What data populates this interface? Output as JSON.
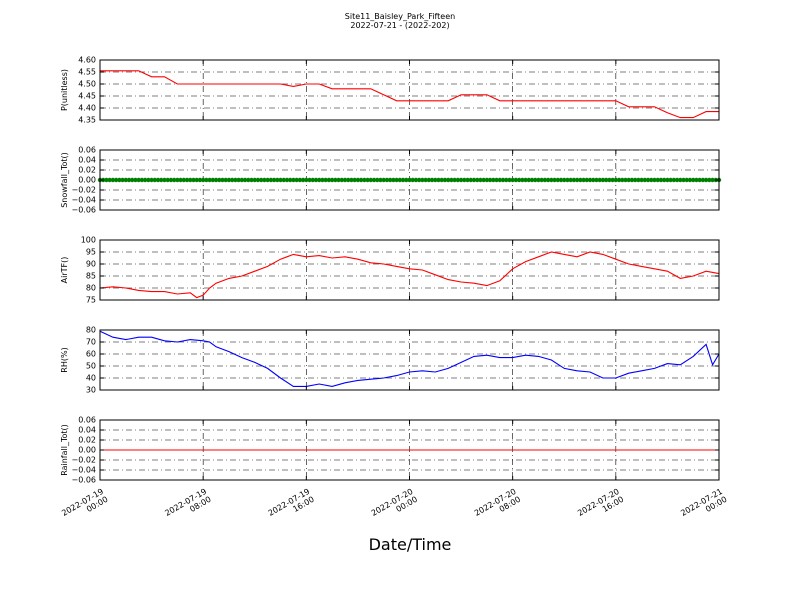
{
  "figure": {
    "title": "Site11_Baisley_Park_Fifteen",
    "subtitle": "2022-07-21 - (2022-202)",
    "xlabel": "Date/Time",
    "x_ticks": [
      "2022-07-19|00:00",
      "2022-07-19|08:00",
      "2022-07-19|16:00",
      "2022-07-20|00:00",
      "2022-07-20|08:00",
      "2022-07-20|16:00",
      "2022-07-21|00:00"
    ]
  },
  "chart_data": [
    {
      "type": "line",
      "ylabel": "P(unitless)",
      "ylim": [
        4.35,
        4.6
      ],
      "yticks": [
        "4.60",
        "4.55",
        "4.50",
        "4.45",
        "4.40",
        "4.35"
      ],
      "xlim_hours": [
        0,
        48
      ],
      "grid": true,
      "series": [
        {
          "color": "#ff0000",
          "x": [
            0,
            1,
            2,
            3,
            4,
            5,
            6,
            7,
            8,
            9,
            10,
            11,
            12,
            13,
            14,
            15,
            16,
            17,
            18,
            19,
            20,
            21,
            22,
            23,
            24,
            25,
            26,
            27,
            28,
            29,
            30,
            31,
            32,
            33,
            34,
            35,
            36,
            37,
            38,
            39,
            40,
            41,
            42,
            43,
            44,
            45,
            46,
            47,
            48
          ],
          "y": [
            4.555,
            4.555,
            4.555,
            4.555,
            4.53,
            4.53,
            4.5,
            4.5,
            4.5,
            4.5,
            4.5,
            4.5,
            4.5,
            4.5,
            4.5,
            4.49,
            4.5,
            4.5,
            4.48,
            4.48,
            4.48,
            4.48,
            4.455,
            4.43,
            4.43,
            4.43,
            4.43,
            4.43,
            4.455,
            4.455,
            4.455,
            4.43,
            4.43,
            4.43,
            4.43,
            4.43,
            4.43,
            4.43,
            4.43,
            4.43,
            4.43,
            4.405,
            4.405,
            4.405,
            4.38,
            4.36,
            4.36,
            4.385,
            4.385
          ]
        }
      ]
    },
    {
      "type": "scatter",
      "ylabel": "Snowfall_Tot()",
      "ylim": [
        -0.06,
        0.06
      ],
      "yticks": [
        "0.06",
        "0.04",
        "0.02",
        "0.00",
        "−0.02",
        "−0.04",
        "−0.06"
      ],
      "xlim_hours": [
        0,
        48
      ],
      "grid": true,
      "series": [
        {
          "color": "#008000",
          "value": 0,
          "x_range": [
            0,
            48
          ],
          "step_hours": 0.25
        }
      ]
    },
    {
      "type": "line",
      "ylabel": "AirTF()",
      "ylim": [
        75,
        100
      ],
      "yticks": [
        "100",
        "95",
        "90",
        "85",
        "80",
        "75"
      ],
      "xlim_hours": [
        0,
        48
      ],
      "grid": true,
      "series": [
        {
          "color": "#ff0000",
          "x": [
            0,
            1,
            2,
            3,
            4,
            5,
            6,
            7,
            7.5,
            8,
            8.5,
            9,
            10,
            11,
            12,
            13,
            14,
            14.5,
            15,
            16,
            17,
            18,
            19,
            20,
            21,
            22,
            23,
            24,
            25,
            26,
            27,
            28,
            29,
            30,
            31,
            32,
            33,
            34,
            35,
            36,
            37,
            38,
            39,
            40,
            41,
            42,
            43,
            44,
            45,
            46,
            47,
            48
          ],
          "y": [
            80,
            80.5,
            80,
            79,
            78.5,
            78.5,
            77.5,
            78,
            76,
            77,
            80,
            82,
            84,
            85,
            87,
            89,
            92,
            93,
            94,
            93,
            93.5,
            92.5,
            93,
            92,
            90.5,
            90,
            89,
            88,
            87.5,
            85.5,
            83.5,
            82.5,
            82,
            81,
            83,
            88,
            91,
            93,
            95,
            94,
            93,
            95,
            94,
            92,
            90,
            89,
            88,
            87,
            84,
            85,
            87,
            86
          ]
        }
      ]
    },
    {
      "type": "line",
      "ylabel": "RH(%)",
      "ylim": [
        30,
        80
      ],
      "yticks": [
        "80",
        "70",
        "60",
        "50",
        "40",
        "30"
      ],
      "xlim_hours": [
        0,
        48
      ],
      "grid": true,
      "series": [
        {
          "color": "#0000ff",
          "x": [
            0,
            1,
            2,
            3,
            4,
            5,
            6,
            7,
            8,
            8.5,
            9,
            10,
            11,
            12,
            13,
            14,
            15,
            16,
            17,
            18,
            19,
            20,
            21,
            22,
            23,
            24,
            25,
            26,
            27,
            28,
            29,
            30,
            31,
            32,
            33,
            34,
            35,
            36,
            37,
            38,
            39,
            40,
            41,
            42,
            43,
            44,
            45,
            46,
            47,
            47.5,
            48
          ],
          "y": [
            79,
            74,
            72,
            74,
            74,
            71,
            70,
            72,
            71,
            70,
            66,
            62,
            57,
            53,
            48,
            40,
            33,
            33,
            35,
            33,
            36,
            38,
            39,
            40,
            42,
            45,
            46,
            45,
            48,
            53,
            58,
            59,
            57,
            57,
            59,
            58,
            55,
            48,
            46,
            45,
            40,
            40,
            44,
            46,
            48,
            52,
            51,
            58,
            68,
            51,
            60
          ]
        }
      ]
    },
    {
      "type": "line",
      "ylabel": "Rainfall_Tot()",
      "ylim": [
        -0.06,
        0.06
      ],
      "yticks": [
        "0.06",
        "0.04",
        "0.02",
        "0.00",
        "−0.02",
        "−0.04",
        "−0.06"
      ],
      "xlim_hours": [
        0,
        48
      ],
      "grid": true,
      "series": [
        {
          "color": "#ff0000",
          "x": [
            0,
            48
          ],
          "y": [
            0,
            0
          ]
        }
      ]
    }
  ]
}
